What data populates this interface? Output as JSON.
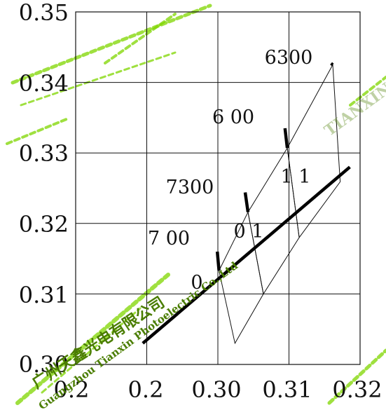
{
  "chart_data": {
    "type": "line",
    "title": "",
    "xlabel": "",
    "ylabel": "",
    "xlim": [
      0.27,
      0.32
    ],
    "ylim": [
      0.3,
      0.35
    ],
    "x_tick_labels": [
      "0.2",
      "0.2",
      "0.30",
      "0.31",
      "0.32"
    ],
    "y_tick_labels": [
      "0.35",
      "0.34",
      "0.33",
      "0.32",
      "0.31",
      "0.30"
    ],
    "grid": true,
    "series": [
      {
        "role": "locus",
        "points": [
          [
            0.2818,
            0.303
          ],
          [
            0.3182,
            0.328
          ]
        ]
      }
    ],
    "cct_ticks": [
      {
        "label": "6300",
        "points": [
          [
            0.3149,
            0.3427
          ],
          [
            0.3152,
            0.3425
          ]
        ]
      },
      {
        "label": "6 00",
        "points": [
          [
            0.3068,
            0.3335
          ],
          [
            0.3072,
            0.3307
          ]
        ]
      },
      {
        "label": "7300",
        "points": [
          [
            0.2998,
            0.3244
          ],
          [
            0.3003,
            0.3216
          ]
        ]
      },
      {
        "label": "7 00",
        "points": [
          [
            0.2949,
            0.316
          ],
          [
            0.2952,
            0.3133
          ]
        ]
      }
    ],
    "quadrangles": [
      {
        "label": "1 1",
        "points": [
          [
            0.3152,
            0.3425
          ],
          [
            0.3072,
            0.3307
          ],
          [
            0.3093,
            0.318
          ],
          [
            0.3165,
            0.3259
          ]
        ]
      },
      {
        "label": "0 1",
        "points": [
          [
            0.3072,
            0.3307
          ],
          [
            0.3003,
            0.3216
          ],
          [
            0.303,
            0.31
          ],
          [
            0.3093,
            0.318
          ]
        ]
      },
      {
        "label": "0",
        "points": [
          [
            0.3003,
            0.3216
          ],
          [
            0.2952,
            0.3133
          ],
          [
            0.298,
            0.303
          ],
          [
            0.303,
            0.31
          ]
        ]
      }
    ],
    "watermarks": [
      "Guangzhou Tianxin Photoelectric Co.,Ltd",
      "TIANXIN",
      "广州天鑫光电有限公司"
    ]
  },
  "colors": {
    "background": "#ffffff",
    "frame": "#111111",
    "grid": "#111111",
    "locus": "#000000",
    "watermark": "#7fd600"
  }
}
